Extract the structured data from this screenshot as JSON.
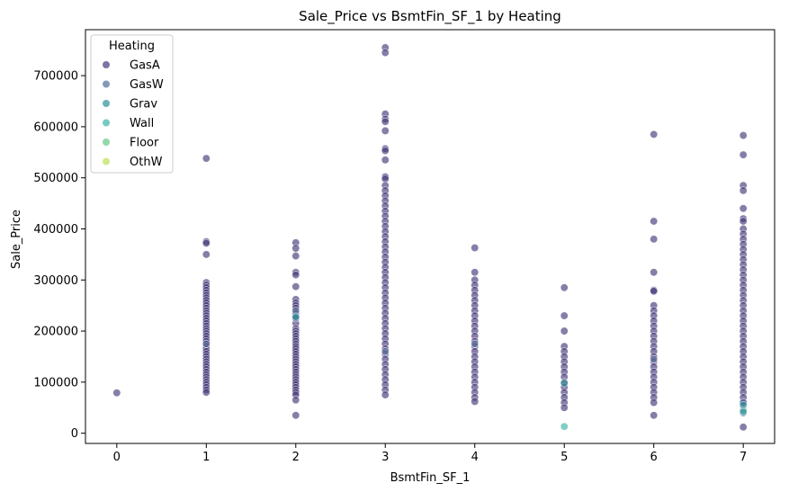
{
  "chart_data": {
    "type": "scatter",
    "title": "Sale_Price vs BsmtFin_SF_1 by Heating",
    "xlabel": "BsmtFin_SF_1",
    "ylabel": "Sale_Price",
    "xlim": [
      -0.35,
      7.35
    ],
    "ylim": [
      -20000,
      790000
    ],
    "x_ticks": [
      0,
      1,
      2,
      3,
      4,
      5,
      6,
      7
    ],
    "y_ticks": [
      0,
      100000,
      200000,
      300000,
      400000,
      500000,
      600000,
      700000
    ],
    "legend": {
      "title": "Heating",
      "placement": "top-left",
      "entries": [
        {
          "name": "GasA",
          "color": "#47397a"
        },
        {
          "name": "GasW",
          "color": "#566d97"
        },
        {
          "name": "Grav",
          "color": "#2f8f9a"
        },
        {
          "name": "Wall",
          "color": "#3cb3a6"
        },
        {
          "name": "Floor",
          "color": "#64c985"
        },
        {
          "name": "OthW",
          "color": "#bde158"
        }
      ]
    },
    "series": [
      {
        "name": "GasA",
        "color": "#47397a",
        "points": [
          [
            0,
            79000
          ],
          [
            1,
            538000
          ],
          [
            1,
            375000
          ],
          [
            1,
            372000
          ],
          [
            1,
            350000
          ],
          [
            1,
            295000
          ],
          [
            1,
            290000
          ],
          [
            1,
            285000
          ],
          [
            1,
            280000
          ],
          [
            1,
            275000
          ],
          [
            1,
            270000
          ],
          [
            1,
            265000
          ],
          [
            1,
            260000
          ],
          [
            1,
            255000
          ],
          [
            1,
            250000
          ],
          [
            1,
            245000
          ],
          [
            1,
            240000
          ],
          [
            1,
            235000
          ],
          [
            1,
            230000
          ],
          [
            1,
            225000
          ],
          [
            1,
            220000
          ],
          [
            1,
            215000
          ],
          [
            1,
            210000
          ],
          [
            1,
            205000
          ],
          [
            1,
            200000
          ],
          [
            1,
            195000
          ],
          [
            1,
            190000
          ],
          [
            1,
            185000
          ],
          [
            1,
            180000
          ],
          [
            1,
            175000
          ],
          [
            1,
            170000
          ],
          [
            1,
            165000
          ],
          [
            1,
            160000
          ],
          [
            1,
            155000
          ],
          [
            1,
            150000
          ],
          [
            1,
            145000
          ],
          [
            1,
            140000
          ],
          [
            1,
            135000
          ],
          [
            1,
            130000
          ],
          [
            1,
            125000
          ],
          [
            1,
            120000
          ],
          [
            1,
            115000
          ],
          [
            1,
            110000
          ],
          [
            1,
            105000
          ],
          [
            1,
            100000
          ],
          [
            1,
            95000
          ],
          [
            1,
            90000
          ],
          [
            1,
            85000
          ],
          [
            1,
            80000
          ],
          [
            2,
            373000
          ],
          [
            2,
            362000
          ],
          [
            2,
            347000
          ],
          [
            2,
            315000
          ],
          [
            2,
            310000
          ],
          [
            2,
            287000
          ],
          [
            2,
            262000
          ],
          [
            2,
            255000
          ],
          [
            2,
            250000
          ],
          [
            2,
            245000
          ],
          [
            2,
            235000
          ],
          [
            2,
            225000
          ],
          [
            2,
            215000
          ],
          [
            2,
            205000
          ],
          [
            2,
            200000
          ],
          [
            2,
            195000
          ],
          [
            2,
            190000
          ],
          [
            2,
            185000
          ],
          [
            2,
            180000
          ],
          [
            2,
            175000
          ],
          [
            2,
            170000
          ],
          [
            2,
            165000
          ],
          [
            2,
            160000
          ],
          [
            2,
            155000
          ],
          [
            2,
            150000
          ],
          [
            2,
            145000
          ],
          [
            2,
            140000
          ],
          [
            2,
            135000
          ],
          [
            2,
            130000
          ],
          [
            2,
            125000
          ],
          [
            2,
            120000
          ],
          [
            2,
            115000
          ],
          [
            2,
            110000
          ],
          [
            2,
            105000
          ],
          [
            2,
            100000
          ],
          [
            2,
            95000
          ],
          [
            2,
            90000
          ],
          [
            2,
            85000
          ],
          [
            2,
            80000
          ],
          [
            2,
            75000
          ],
          [
            2,
            65000
          ],
          [
            2,
            35000
          ],
          [
            3,
            755000
          ],
          [
            3,
            745000
          ],
          [
            3,
            625000
          ],
          [
            3,
            615000
          ],
          [
            3,
            610000
          ],
          [
            3,
            592000
          ],
          [
            3,
            557000
          ],
          [
            3,
            553000
          ],
          [
            3,
            535000
          ],
          [
            3,
            502000
          ],
          [
            3,
            498000
          ],
          [
            3,
            485000
          ],
          [
            3,
            475000
          ],
          [
            3,
            465000
          ],
          [
            3,
            455000
          ],
          [
            3,
            445000
          ],
          [
            3,
            435000
          ],
          [
            3,
            425000
          ],
          [
            3,
            415000
          ],
          [
            3,
            405000
          ],
          [
            3,
            395000
          ],
          [
            3,
            385000
          ],
          [
            3,
            375000
          ],
          [
            3,
            365000
          ],
          [
            3,
            355000
          ],
          [
            3,
            345000
          ],
          [
            3,
            335000
          ],
          [
            3,
            325000
          ],
          [
            3,
            315000
          ],
          [
            3,
            305000
          ],
          [
            3,
            295000
          ],
          [
            3,
            285000
          ],
          [
            3,
            275000
          ],
          [
            3,
            265000
          ],
          [
            3,
            255000
          ],
          [
            3,
            245000
          ],
          [
            3,
            235000
          ],
          [
            3,
            225000
          ],
          [
            3,
            215000
          ],
          [
            3,
            205000
          ],
          [
            3,
            195000
          ],
          [
            3,
            185000
          ],
          [
            3,
            175000
          ],
          [
            3,
            165000
          ],
          [
            3,
            155000
          ],
          [
            3,
            145000
          ],
          [
            3,
            135000
          ],
          [
            3,
            125000
          ],
          [
            3,
            115000
          ],
          [
            3,
            105000
          ],
          [
            3,
            95000
          ],
          [
            3,
            85000
          ],
          [
            3,
            75000
          ],
          [
            4,
            363000
          ],
          [
            4,
            315000
          ],
          [
            4,
            300000
          ],
          [
            4,
            290000
          ],
          [
            4,
            280000
          ],
          [
            4,
            270000
          ],
          [
            4,
            260000
          ],
          [
            4,
            250000
          ],
          [
            4,
            240000
          ],
          [
            4,
            230000
          ],
          [
            4,
            220000
          ],
          [
            4,
            210000
          ],
          [
            4,
            200000
          ],
          [
            4,
            190000
          ],
          [
            4,
            180000
          ],
          [
            4,
            170000
          ],
          [
            4,
            160000
          ],
          [
            4,
            150000
          ],
          [
            4,
            140000
          ],
          [
            4,
            130000
          ],
          [
            4,
            120000
          ],
          [
            4,
            110000
          ],
          [
            4,
            100000
          ],
          [
            4,
            90000
          ],
          [
            4,
            80000
          ],
          [
            4,
            70000
          ],
          [
            4,
            62000
          ],
          [
            5,
            285000
          ],
          [
            5,
            230000
          ],
          [
            5,
            200000
          ],
          [
            5,
            170000
          ],
          [
            5,
            160000
          ],
          [
            5,
            150000
          ],
          [
            5,
            140000
          ],
          [
            5,
            130000
          ],
          [
            5,
            120000
          ],
          [
            5,
            110000
          ],
          [
            5,
            100000
          ],
          [
            5,
            90000
          ],
          [
            5,
            80000
          ],
          [
            5,
            70000
          ],
          [
            5,
            60000
          ],
          [
            5,
            50000
          ],
          [
            6,
            585000
          ],
          [
            6,
            415000
          ],
          [
            6,
            380000
          ],
          [
            6,
            315000
          ],
          [
            6,
            280000
          ],
          [
            6,
            278000
          ],
          [
            6,
            250000
          ],
          [
            6,
            240000
          ],
          [
            6,
            230000
          ],
          [
            6,
            220000
          ],
          [
            6,
            210000
          ],
          [
            6,
            200000
          ],
          [
            6,
            190000
          ],
          [
            6,
            180000
          ],
          [
            6,
            170000
          ],
          [
            6,
            160000
          ],
          [
            6,
            150000
          ],
          [
            6,
            140000
          ],
          [
            6,
            130000
          ],
          [
            6,
            120000
          ],
          [
            6,
            110000
          ],
          [
            6,
            100000
          ],
          [
            6,
            90000
          ],
          [
            6,
            80000
          ],
          [
            6,
            70000
          ],
          [
            6,
            60000
          ],
          [
            6,
            35000
          ],
          [
            7,
            583000
          ],
          [
            7,
            545000
          ],
          [
            7,
            485000
          ],
          [
            7,
            475000
          ],
          [
            7,
            440000
          ],
          [
            7,
            420000
          ],
          [
            7,
            415000
          ],
          [
            7,
            400000
          ],
          [
            7,
            390000
          ],
          [
            7,
            380000
          ],
          [
            7,
            370000
          ],
          [
            7,
            360000
          ],
          [
            7,
            350000
          ],
          [
            7,
            340000
          ],
          [
            7,
            330000
          ],
          [
            7,
            320000
          ],
          [
            7,
            310000
          ],
          [
            7,
            300000
          ],
          [
            7,
            290000
          ],
          [
            7,
            280000
          ],
          [
            7,
            270000
          ],
          [
            7,
            260000
          ],
          [
            7,
            250000
          ],
          [
            7,
            240000
          ],
          [
            7,
            230000
          ],
          [
            7,
            220000
          ],
          [
            7,
            210000
          ],
          [
            7,
            200000
          ],
          [
            7,
            190000
          ],
          [
            7,
            180000
          ],
          [
            7,
            170000
          ],
          [
            7,
            160000
          ],
          [
            7,
            150000
          ],
          [
            7,
            140000
          ],
          [
            7,
            130000
          ],
          [
            7,
            120000
          ],
          [
            7,
            110000
          ],
          [
            7,
            100000
          ],
          [
            7,
            90000
          ],
          [
            7,
            80000
          ],
          [
            7,
            70000
          ],
          [
            7,
            60000
          ],
          [
            7,
            40000
          ],
          [
            7,
            12000
          ]
        ]
      },
      {
        "name": "GasW",
        "color": "#566d97",
        "points": [
          [
            1,
            175000
          ],
          [
            2,
            240000
          ],
          [
            2,
            225000
          ],
          [
            3,
            160000
          ],
          [
            4,
            175000
          ],
          [
            6,
            145000
          ],
          [
            7,
            60000
          ],
          [
            7,
            45000
          ]
        ]
      },
      {
        "name": "Grav",
        "color": "#2f8f9a",
        "points": [
          [
            2,
            228000
          ],
          [
            5,
            98000
          ],
          [
            7,
            55000
          ]
        ]
      },
      {
        "name": "Wall",
        "color": "#3cb3a6",
        "points": [
          [
            5,
            13000
          ],
          [
            7,
            42000
          ]
        ]
      },
      {
        "name": "Floor",
        "color": "#64c985",
        "points": []
      },
      {
        "name": "OthW",
        "color": "#bde158",
        "points": []
      }
    ]
  }
}
